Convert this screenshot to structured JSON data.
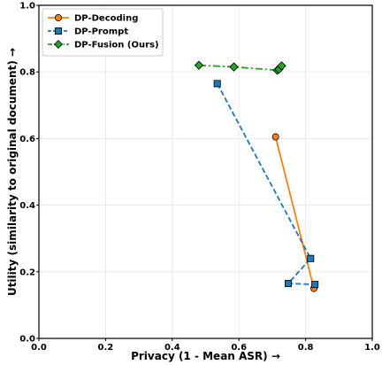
{
  "chart_data": {
    "type": "line",
    "xlabel": "Privacy (1 - Mean ASR) →",
    "ylabel": "Utility (similarity to original document) →",
    "xlim": [
      0.0,
      1.0
    ],
    "ylim": [
      0.0,
      1.0
    ],
    "xticks": [
      "0.0",
      "0.2",
      "0.4",
      "0.6",
      "0.8",
      "1.0"
    ],
    "yticks": [
      "0.0",
      "0.2",
      "0.4",
      "0.6",
      "0.8",
      "1.0"
    ],
    "grid": true,
    "legend_position": "top-left",
    "series": [
      {
        "name": "DP-Decoding",
        "color": "#ff7f0e",
        "line_style": "solid",
        "marker": "circle",
        "points": [
          {
            "x": 0.71,
            "y": 0.605
          },
          {
            "x": 0.825,
            "y": 0.15
          }
        ]
      },
      {
        "name": "DP-Prompt",
        "color": "#1f77b4",
        "line_style": "dashed",
        "marker": "square",
        "points": [
          {
            "x": 0.535,
            "y": 0.765
          },
          {
            "x": 0.815,
            "y": 0.24
          },
          {
            "x": 0.748,
            "y": 0.165
          },
          {
            "x": 0.828,
            "y": 0.162
          }
        ]
      },
      {
        "name": "DP-Fusion (Ours)",
        "color": "#2ca02c",
        "line_style": "dashdot",
        "marker": "diamond",
        "points": [
          {
            "x": 0.48,
            "y": 0.82
          },
          {
            "x": 0.585,
            "y": 0.815
          },
          {
            "x": 0.715,
            "y": 0.805
          },
          {
            "x": 0.72,
            "y": 0.808
          },
          {
            "x": 0.728,
            "y": 0.818
          }
        ]
      }
    ]
  }
}
